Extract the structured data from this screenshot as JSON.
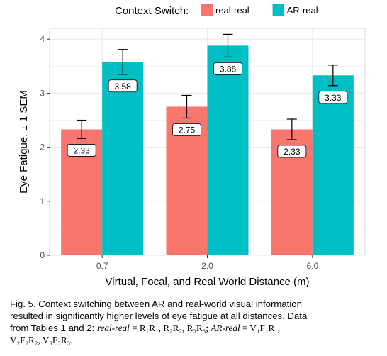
{
  "chart_data": {
    "type": "bar",
    "categories": [
      "0.7",
      "2.0",
      "6.0"
    ],
    "series": [
      {
        "name": "real-real",
        "color": "#F8766D",
        "values": [
          2.33,
          2.75,
          2.33
        ],
        "error": [
          0.17,
          0.21,
          0.19
        ],
        "labels": [
          "2.33",
          "2.75",
          "2.33"
        ]
      },
      {
        "name": "AR-real",
        "color": "#00BFC4",
        "values": [
          3.58,
          3.88,
          3.33
        ],
        "error": [
          0.23,
          0.21,
          0.19
        ],
        "labels": [
          "3.58",
          "3.88",
          "3.33"
        ]
      }
    ],
    "xlabel": "Virtual, Focal, and Real World Distance (m)",
    "ylabel": "Eye Fatigue, ± 1 SEM",
    "ylim": [
      0,
      4.2
    ],
    "yticks": [
      "0",
      "1",
      "2",
      "3",
      "4"
    ],
    "legend_title": "Context Switch:",
    "legend_position": "top",
    "grid": true,
    "panel_background": "#ffffff",
    "grid_color": "#ebebeb"
  },
  "caption": {
    "lines": [
      "Fig. 5. Context switching between AR and real-world visual information",
      "resulted in significantly higher levels of eye fatigue at all distances. Data"
    ],
    "line3_prefix": "from Tables 1 and 2: ",
    "rr_term": "real-real",
    "rr_def": " = R₁R₁, R₂R₂, R₃R₃; ",
    "ar_term": "AR-real",
    "ar_def": " = V₁F₁R₁,",
    "line4": "V₂F₂R₂, V₃F₃R₃."
  }
}
